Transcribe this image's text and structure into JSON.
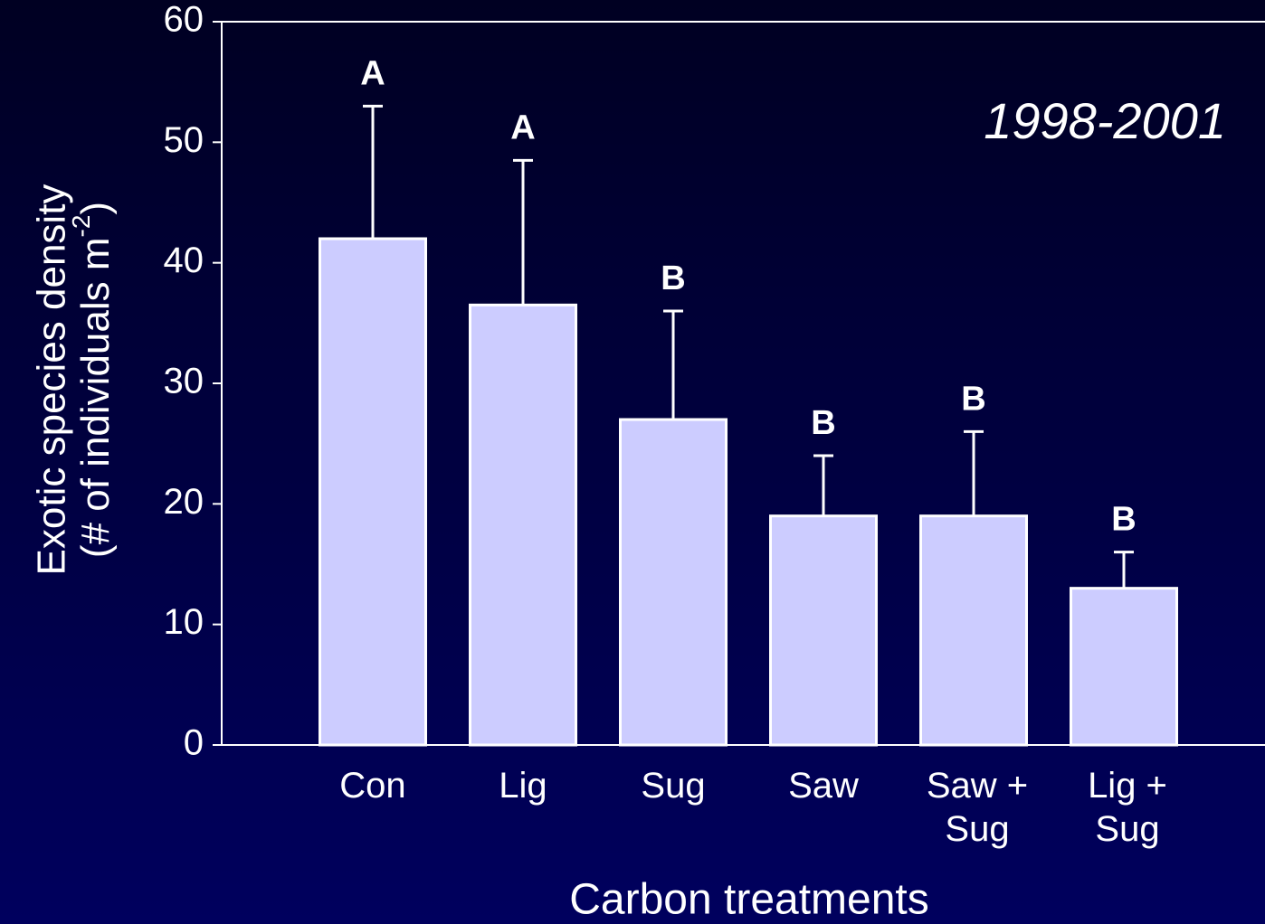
{
  "chart_data": {
    "type": "bar",
    "categories": [
      "Con",
      "Lig",
      "Sug",
      "Saw",
      "Saw +\nSug",
      "Lig +\nSug"
    ],
    "values": [
      42,
      36.5,
      27,
      19,
      19,
      13
    ],
    "errors": [
      11,
      12,
      9,
      5,
      7,
      3
    ],
    "significance_labels": [
      "A",
      "A",
      "B",
      "B",
      "B",
      "B"
    ],
    "color": "#ccccff",
    "ylim": [
      0,
      60
    ],
    "yticks": [
      0,
      10,
      20,
      30,
      40,
      50,
      60
    ],
    "x_label": "Carbon treatments",
    "y_label": {
      "line1": "Exotic species density",
      "line2": "(# of individuals m",
      "superscript": "-2",
      "line2_end": ")"
    },
    "annotation": "1998-2001"
  }
}
